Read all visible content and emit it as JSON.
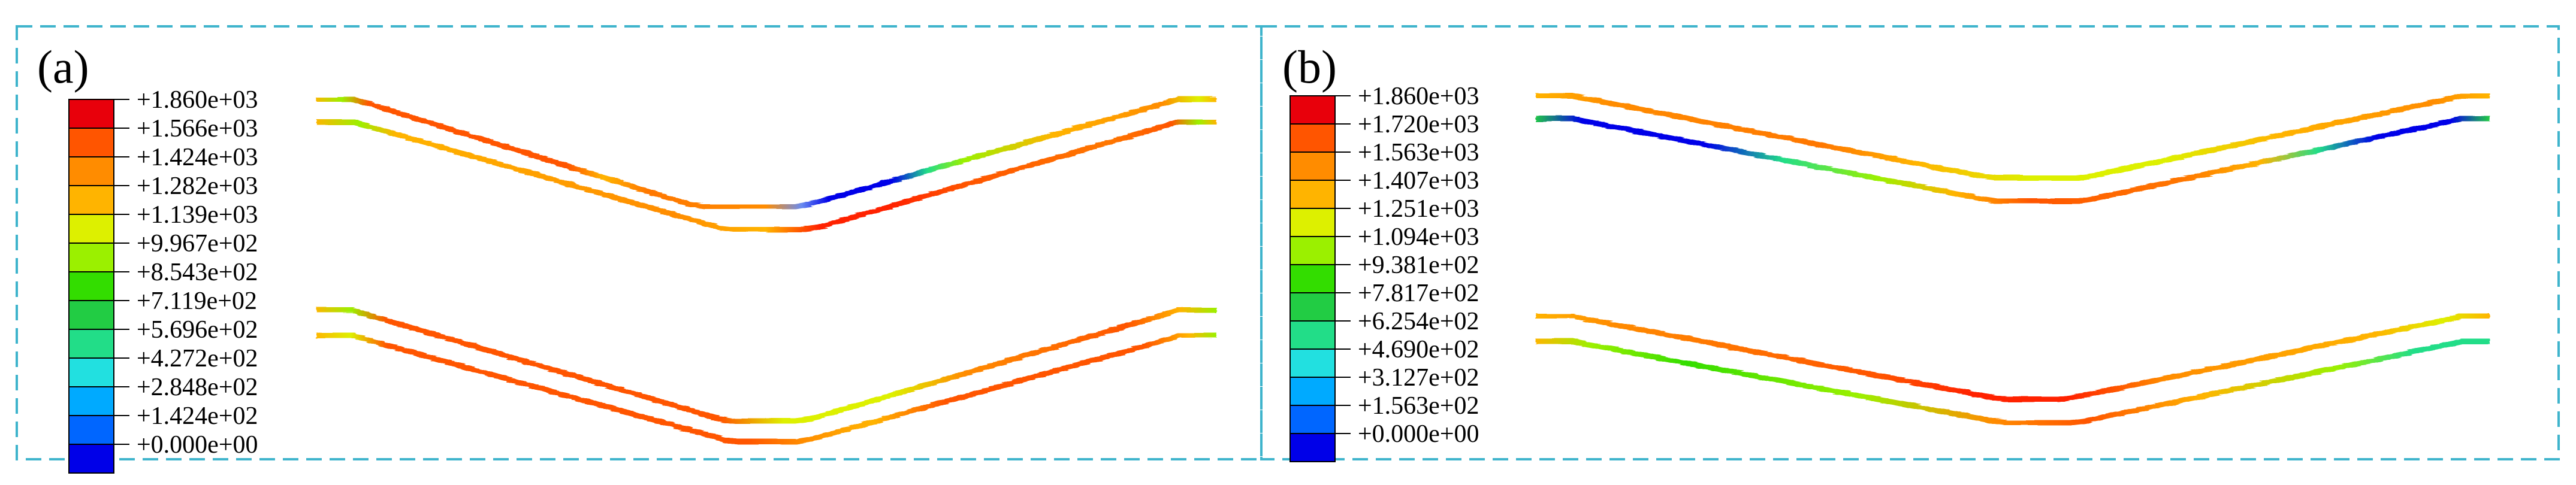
{
  "panels": [
    {
      "id": "a",
      "label": "(a)",
      "legend_ticks": [
        "+1.860e+03",
        "+1.566e+03",
        "+1.424e+03",
        "+1.282e+03",
        "+1.139e+03",
        "+9.967e+02",
        "+8.543e+02",
        "+7.119e+02",
        "+5.696e+02",
        "+4.272e+02",
        "+2.848e+02",
        "+1.424e+02",
        "+0.000e+00"
      ]
    },
    {
      "id": "b",
      "label": "(b)",
      "legend_ticks": [
        "+1.860e+03",
        "+1.720e+03",
        "+1.563e+03",
        "+1.407e+03",
        "+1.251e+03",
        "+1.094e+03",
        "+9.381e+02",
        "+7.817e+02",
        "+6.254e+02",
        "+4.690e+02",
        "+3.127e+02",
        "+1.563e+02",
        "+0.000e+00"
      ]
    }
  ],
  "colormap": [
    "#e8000b",
    "#ff5500",
    "#ff8c00",
    "#ffb400",
    "#ddf000",
    "#9bf000",
    "#33dd00",
    "#22cc44",
    "#22dd88",
    "#22e0e0",
    "#00aaff",
    "#0066ff",
    "#0000e8"
  ],
  "border_color": "#3fb4cc"
}
